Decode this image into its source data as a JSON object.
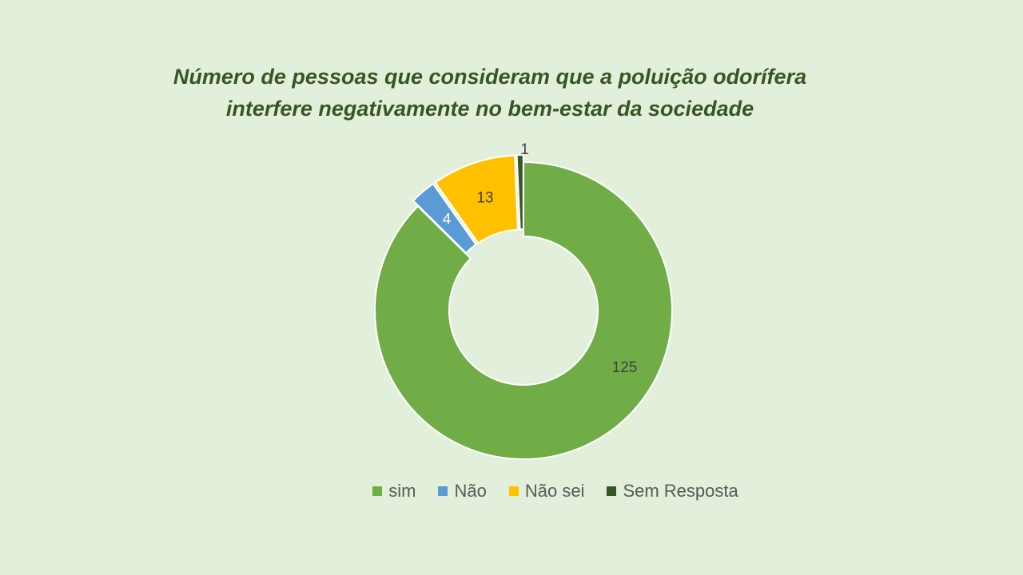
{
  "chart_data": {
    "type": "pie",
    "variant": "donut",
    "title_lines": [
      "Número de pessoas que consideram que a poluição odorífera",
      "interfere negativamente no bem-estar da sociedade"
    ],
    "categories": [
      "sim",
      "Não",
      "Não sei",
      "Sem Resposta"
    ],
    "values": [
      125,
      4,
      13,
      1
    ],
    "colors": [
      "#70ad47",
      "#5b9bd5",
      "#ffc000",
      "#375623"
    ],
    "exploded": [
      false,
      true,
      true,
      true
    ],
    "data_labels": [
      "125",
      "4",
      "13",
      "1"
    ],
    "legend_position": "bottom",
    "background": "#e2efda"
  }
}
